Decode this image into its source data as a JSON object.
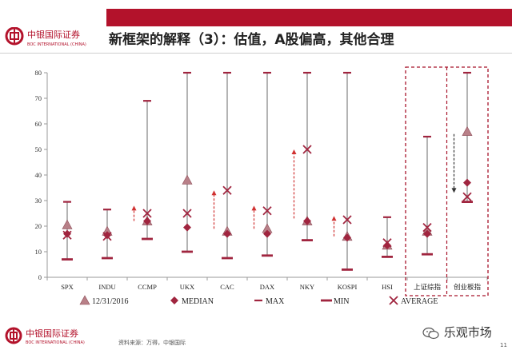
{
  "header": {
    "title": "新框架的解释（3）：估值，A股偏高，其他合理",
    "logo_cn": "中银国际证券",
    "logo_en": "BOC INTERNATIONAL (CHINA)",
    "stripe_color": "#b3122b"
  },
  "footer": {
    "logo_cn": "中银国际证券",
    "logo_en": "BOC INTERNATIONAL (CHINA)",
    "source": "资料来源：万得，中银国际",
    "page_number": "11",
    "watermark": "乐观市场"
  },
  "chart_data": {
    "type": "scatter",
    "categories": [
      "SPX",
      "INDU",
      "CCMP",
      "UKX",
      "CAC",
      "DAX",
      "NKY",
      "KOSPI",
      "HSI",
      "上证综指",
      "创业板指"
    ],
    "ylim": [
      0,
      80
    ],
    "yticks": [
      0,
      10,
      20,
      30,
      40,
      50,
      60,
      70,
      80
    ],
    "xlabel": "",
    "ylabel": "",
    "series": [
      {
        "name": "12/31/2016",
        "marker": "triangle",
        "values": [
          20.5,
          18,
          22,
          38,
          18,
          19,
          22,
          16,
          12.5,
          18,
          57
        ]
      },
      {
        "name": "MEDIAN",
        "marker": "diamond",
        "values": [
          17,
          16.5,
          22,
          19.5,
          17,
          17,
          22,
          15.5,
          12.5,
          17,
          37
        ]
      },
      {
        "name": "MAX",
        "marker": "dash",
        "values": [
          29.5,
          26.5,
          69,
          80,
          80,
          80,
          80,
          80,
          23.5,
          55,
          80
        ]
      },
      {
        "name": "MIN",
        "marker": "bar",
        "values": [
          7,
          7.5,
          15,
          10,
          7.5,
          8.5,
          14.5,
          3,
          8,
          9,
          29.5
        ]
      },
      {
        "name": "AVERAGE",
        "marker": "x",
        "values": [
          16.5,
          16,
          25,
          25,
          34,
          26,
          50,
          22.5,
          13.5,
          19.5,
          31.5
        ]
      }
    ],
    "arrows": [
      {
        "category": "CCMP",
        "direction": "up",
        "from": 22,
        "to": 28
      },
      {
        "category": "CAC",
        "direction": "up",
        "from": 19,
        "to": 34
      },
      {
        "category": "DAX",
        "direction": "up",
        "from": 19,
        "to": 28
      },
      {
        "category": "NKY",
        "direction": "up",
        "from": 23,
        "to": 50
      },
      {
        "category": "KOSPI",
        "direction": "up",
        "from": 16,
        "to": 24
      },
      {
        "category": "创业板指",
        "direction": "down",
        "from": 56,
        "to": 33
      }
    ],
    "highlight_box": {
      "categories": [
        "上证综指",
        "创业板指"
      ],
      "style": "dashed",
      "color": "#a8142b"
    },
    "colors": {
      "series": "#a0253f",
      "triangle": "#b88088",
      "whisker": "#8c8c8c",
      "arrow": "#d03030"
    },
    "legend_position": "bottom",
    "grid": false
  }
}
